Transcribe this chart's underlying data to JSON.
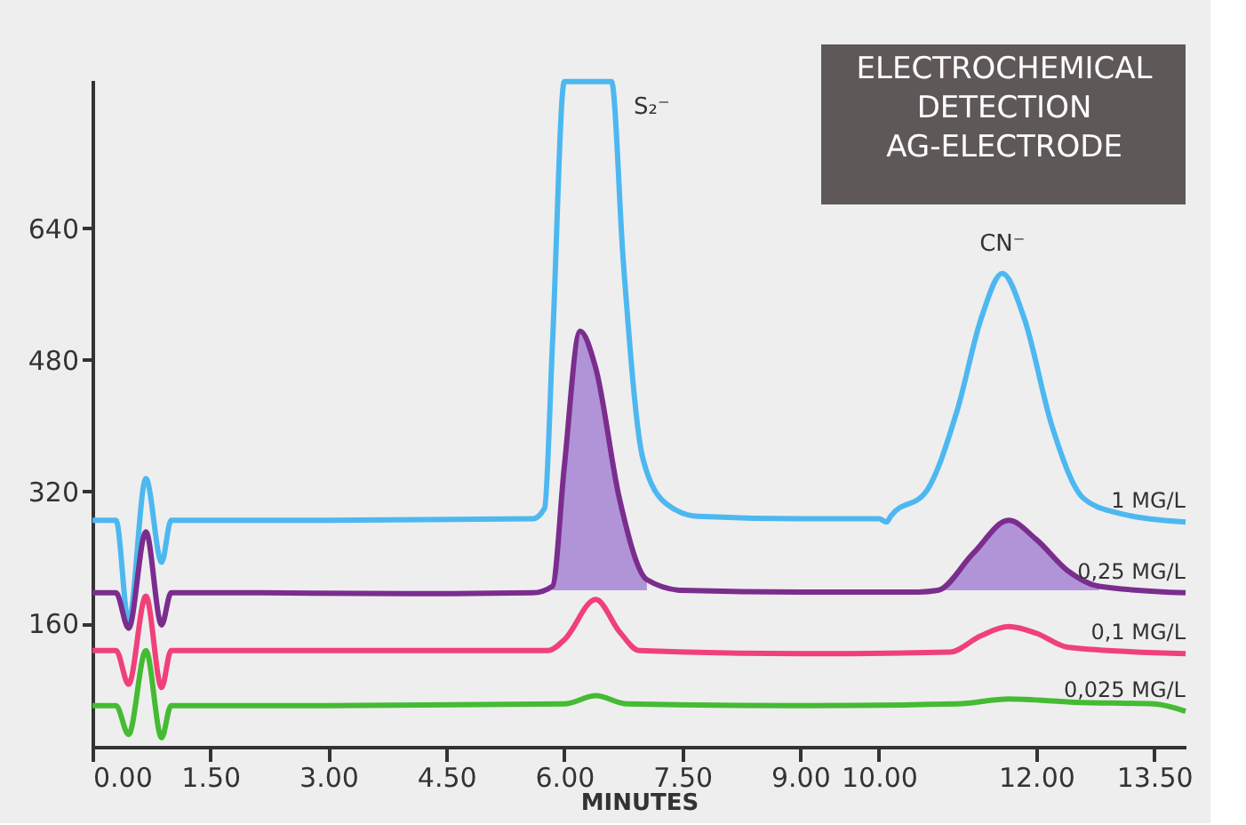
{
  "chart_data": {
    "type": "line",
    "title": "ELECTROCHEMICAL DETECTION AG-ELECTRODE",
    "xlabel": "MINUTES",
    "xlim": [
      0,
      13.9
    ],
    "ylim": [
      10,
      820
    ],
    "xticks": [
      {
        "value": 0,
        "label": "0.00"
      },
      {
        "value": 1.5,
        "label": "1.50"
      },
      {
        "value": 3,
        "label": "3.00"
      },
      {
        "value": 4.5,
        "label": "4.50"
      },
      {
        "value": 6,
        "label": "6.00"
      },
      {
        "value": 7.5,
        "label": "7.50"
      },
      {
        "value": 9,
        "label": "9.00"
      },
      {
        "value": 10,
        "label": "10.00"
      },
      {
        "value": 12,
        "label": "12.00"
      },
      {
        "value": 13.5,
        "label": "13.50"
      }
    ],
    "yticks": [
      160,
      320,
      480,
      640
    ],
    "grid": false,
    "legend": false,
    "series": [
      {
        "name": "1 MG/L",
        "color": "#4db8f0",
        "x": [
          0,
          0.3,
          0.46,
          0.68,
          0.88,
          1.0,
          3,
          5.6,
          5.75,
          5.85,
          6.0,
          6.6,
          6.75,
          7.0,
          7.3,
          7.7,
          9,
          10.0,
          10.1,
          10.15,
          10.6,
          11.0,
          11.3,
          11.57,
          11.85,
          12.2,
          12.6,
          13.0,
          13.9
        ],
        "values": [
          285,
          285,
          162,
          336,
          234,
          285,
          285,
          287,
          300,
          500,
          818,
          818,
          600,
          360,
          305,
          290,
          287,
          287,
          283,
          290,
          320,
          420,
          530,
          585,
          530,
          400,
          312,
          295,
          283
        ]
      },
      {
        "name": "0,25 MG/L",
        "color": "#7b2d8e",
        "x": [
          0,
          0.3,
          0.46,
          0.68,
          0.88,
          1.0,
          2,
          4,
          5.6,
          5.85,
          6.0,
          6.2,
          6.4,
          6.7,
          7.05,
          7.5,
          9,
          10.5,
          10.75,
          11.2,
          11.65,
          12.0,
          12.4,
          12.8,
          13.9
        ],
        "values": [
          197,
          197,
          154,
          271,
          158,
          197,
          197,
          196,
          197,
          205,
          350,
          515,
          470,
          312,
          213,
          200,
          198,
          198,
          200,
          245,
          285,
          262,
          224,
          205,
          197
        ],
        "lower": [
          null,
          null,
          null,
          null,
          null,
          null,
          null,
          null,
          null,
          200,
          200,
          200,
          200,
          200,
          200,
          null,
          null,
          null,
          200,
          200,
          200,
          200,
          200,
          200,
          null
        ],
        "upper": [
          null,
          null,
          null,
          null,
          null,
          null,
          null,
          null,
          null,
          205,
          350,
          515,
          470,
          312,
          213,
          null,
          null,
          null,
          200,
          245,
          285,
          262,
          224,
          205,
          null
        ]
      },
      {
        "name": "0,1 MG/L",
        "color": "#f0407a",
        "x": [
          0,
          0.3,
          0.46,
          0.68,
          0.88,
          1.0,
          3,
          5.8,
          6.0,
          6.4,
          6.7,
          6.95,
          9,
          10.9,
          11.3,
          11.65,
          12.0,
          12.4,
          13.9
        ],
        "values": [
          127,
          127,
          86,
          193,
          82,
          127,
          127,
          127,
          140,
          189,
          150,
          127,
          123,
          125,
          145,
          156,
          148,
          131,
          123
        ]
      },
      {
        "name": "0,025 MG/L",
        "color": "#44bb33",
        "x": [
          0,
          0.3,
          0.46,
          0.68,
          0.88,
          1.0,
          3,
          6.0,
          6.4,
          6.8,
          9,
          11.0,
          11.65,
          12.5,
          13.5,
          13.9
        ],
        "values": [
          60,
          60,
          25,
          127,
          21,
          60,
          60,
          62,
          72,
          62,
          60,
          62,
          68,
          64,
          62,
          53
        ]
      }
    ],
    "annotations": [
      {
        "text": "S₂⁻",
        "x": 6.25,
        "y": 818
      },
      {
        "text": "CN⁻",
        "x": 11.57,
        "y": 585
      }
    ]
  }
}
